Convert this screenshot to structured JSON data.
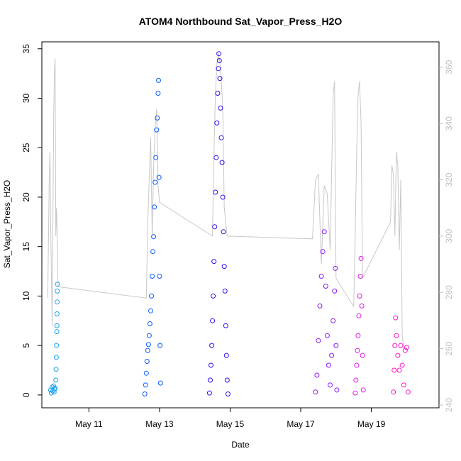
{
  "chart_data": {
    "type": "scatter",
    "title": "ATOM4 Northbound Sat_Vapor_Press_H2O",
    "xlabel": "Date",
    "ylabel": "Sat_Vapor_Press_H2O",
    "xlim": [
      "2018-05-09T16:00",
      "2018-05-20T22:00"
    ],
    "ylim": [
      -1.3,
      35.7
    ],
    "y2lim": [
      239.0,
      369.0
    ],
    "grid": false,
    "x_ticks": [
      {
        "date": "2018-05-11",
        "label": "May 11"
      },
      {
        "date": "2018-05-13",
        "label": "May 13"
      },
      {
        "date": "2018-05-15",
        "label": "May 15"
      },
      {
        "date": "2018-05-17",
        "label": "May 17"
      },
      {
        "date": "2018-05-19",
        "label": "May 19"
      }
    ],
    "y_ticks": [
      0,
      5,
      10,
      15,
      20,
      25,
      30,
      35
    ],
    "y2_ticks": [
      240,
      260,
      280,
      300,
      320,
      340,
      360
    ],
    "colors": {
      "secondary_line": "#c8c8c8",
      "right_axis": "#c0c0c0",
      "axis": "#000000"
    },
    "series": [
      {
        "color": "#19a3f0",
        "points": [
          [
            "2018-05-09T22:00",
            0.5
          ],
          [
            "2018-05-09T22:30",
            0.2
          ],
          [
            "2018-05-09T23:00",
            0.8
          ],
          [
            "2018-05-09T23:30",
            0.4
          ],
          [
            "2018-05-10T00:00",
            0.9
          ],
          [
            "2018-05-10T00:20",
            0.3
          ],
          [
            "2018-05-10T00:40",
            0.6
          ],
          [
            "2018-05-10T01:00",
            0.7
          ],
          [
            "2018-05-10T01:30",
            1.5
          ],
          [
            "2018-05-10T01:40",
            2.6
          ],
          [
            "2018-05-10T01:50",
            3.8
          ],
          [
            "2018-05-10T02:00",
            5.0
          ],
          [
            "2018-05-10T02:10",
            6.4
          ],
          [
            "2018-05-10T02:15",
            7.0
          ],
          [
            "2018-05-10T02:20",
            8.2
          ],
          [
            "2018-05-10T02:25",
            9.4
          ],
          [
            "2018-05-10T02:30",
            10.5
          ],
          [
            "2018-05-10T02:35",
            11.2
          ]
        ]
      },
      {
        "color": "#0a5aff",
        "points": [
          [
            "2018-05-12T14:00",
            0.1
          ],
          [
            "2018-05-12T14:30",
            1.0
          ],
          [
            "2018-05-12T15:00",
            2.2
          ],
          [
            "2018-05-12T15:30",
            3.4
          ],
          [
            "2018-05-12T16:00",
            4.5
          ],
          [
            "2018-05-12T16:30",
            5.1
          ],
          [
            "2018-05-12T17:00",
            6.0
          ],
          [
            "2018-05-12T17:30",
            7.2
          ],
          [
            "2018-05-12T18:00",
            8.5
          ],
          [
            "2018-05-12T18:30",
            10.0
          ],
          [
            "2018-05-12T19:00",
            12.0
          ],
          [
            "2018-05-12T19:30",
            14.5
          ],
          [
            "2018-05-12T20:00",
            16.0
          ],
          [
            "2018-05-12T20:30",
            19.0
          ],
          [
            "2018-05-12T21:00",
            21.5
          ],
          [
            "2018-05-12T21:30",
            24.0
          ],
          [
            "2018-05-12T22:00",
            26.8
          ],
          [
            "2018-05-12T22:30",
            28.0
          ],
          [
            "2018-05-12T23:00",
            30.5
          ],
          [
            "2018-05-12T23:20",
            31.8
          ],
          [
            "2018-05-12T23:40",
            22.0
          ],
          [
            "2018-05-13T00:00",
            12.0
          ],
          [
            "2018-05-13T00:20",
            5.0
          ],
          [
            "2018-05-13T00:40",
            1.2
          ]
        ]
      },
      {
        "color": "#2a10f0",
        "points": [
          [
            "2018-05-14T10:00",
            0.2
          ],
          [
            "2018-05-14T10:30",
            1.5
          ],
          [
            "2018-05-14T11:00",
            3.0
          ],
          [
            "2018-05-14T11:30",
            5.0
          ],
          [
            "2018-05-14T12:00",
            7.5
          ],
          [
            "2018-05-14T12:30",
            10.0
          ],
          [
            "2018-05-14T13:00",
            13.5
          ],
          [
            "2018-05-14T13:30",
            17.0
          ],
          [
            "2018-05-14T14:00",
            20.5
          ],
          [
            "2018-05-14T14:30",
            24.0
          ],
          [
            "2018-05-14T15:00",
            27.5
          ],
          [
            "2018-05-14T15:30",
            30.5
          ],
          [
            "2018-05-14T16:00",
            33.0
          ],
          [
            "2018-05-14T16:20",
            34.5
          ],
          [
            "2018-05-14T16:40",
            33.8
          ],
          [
            "2018-05-14T17:00",
            32.0
          ],
          [
            "2018-05-14T17:30",
            29.0
          ],
          [
            "2018-05-14T18:00",
            26.0
          ],
          [
            "2018-05-14T18:30",
            23.5
          ],
          [
            "2018-05-14T19:00",
            20.0
          ],
          [
            "2018-05-14T19:30",
            16.5
          ],
          [
            "2018-05-14T20:00",
            13.0
          ],
          [
            "2018-05-14T20:30",
            10.5
          ],
          [
            "2018-05-14T21:00",
            7.0
          ],
          [
            "2018-05-14T21:30",
            4.0
          ],
          [
            "2018-05-14T22:00",
            1.5
          ],
          [
            "2018-05-14T22:30",
            0.1
          ]
        ]
      },
      {
        "color": "#8a18f5",
        "points": [
          [
            "2018-05-17T10:00",
            0.3
          ],
          [
            "2018-05-17T11:00",
            2.0
          ],
          [
            "2018-05-17T12:00",
            5.5
          ],
          [
            "2018-05-17T13:00",
            9.0
          ],
          [
            "2018-05-17T14:00",
            12.0
          ],
          [
            "2018-05-17T15:00",
            14.5
          ],
          [
            "2018-05-17T16:00",
            16.5
          ],
          [
            "2018-05-17T17:00",
            11.0
          ],
          [
            "2018-05-17T18:00",
            6.0
          ],
          [
            "2018-05-17T19:00",
            3.0
          ],
          [
            "2018-05-17T20:00",
            1.0
          ],
          [
            "2018-05-17T21:00",
            4.0
          ],
          [
            "2018-05-17T22:00",
            7.5
          ],
          [
            "2018-05-17T23:00",
            10.5
          ],
          [
            "2018-05-17T23:30",
            12.8
          ],
          [
            "2018-05-18T00:00",
            5.0
          ],
          [
            "2018-05-18T00:30",
            0.5
          ]
        ]
      },
      {
        "color": "#e01ae8",
        "points": [
          [
            "2018-05-18T13:00",
            0.2
          ],
          [
            "2018-05-18T13:30",
            1.5
          ],
          [
            "2018-05-18T14:00",
            3.0
          ],
          [
            "2018-05-18T14:30",
            4.5
          ],
          [
            "2018-05-18T15:00",
            6.0
          ],
          [
            "2018-05-18T15:30",
            8.0
          ],
          [
            "2018-05-18T16:00",
            10.0
          ],
          [
            "2018-05-18T16:30",
            12.0
          ],
          [
            "2018-05-18T17:00",
            13.8
          ],
          [
            "2018-05-18T17:30",
            9.0
          ],
          [
            "2018-05-18T18:00",
            4.0
          ],
          [
            "2018-05-18T18:30",
            0.5
          ]
        ]
      },
      {
        "color": "#ff14c8",
        "points": [
          [
            "2018-05-19T15:00",
            0.3
          ],
          [
            "2018-05-19T15:30",
            2.5
          ],
          [
            "2018-05-19T16:00",
            5.0
          ],
          [
            "2018-05-19T16:30",
            7.8
          ],
          [
            "2018-05-19T17:00",
            6.0
          ],
          [
            "2018-05-19T18:00",
            4.0
          ],
          [
            "2018-05-19T19:00",
            2.5
          ],
          [
            "2018-05-19T20:00",
            5.0
          ],
          [
            "2018-05-19T21:00",
            3.0
          ],
          [
            "2018-05-19T22:00",
            1.0
          ],
          [
            "2018-05-19T23:00",
            4.5
          ],
          [
            "2018-05-20T00:00",
            4.8
          ],
          [
            "2018-05-20T01:00",
            0.3
          ]
        ]
      }
    ],
    "secondary_series": {
      "axis": "right",
      "points": [
        [
          "2018-05-09T20:00",
          278
        ],
        [
          "2018-05-09T21:00",
          320
        ],
        [
          "2018-05-09T21:30",
          330
        ],
        [
          "2018-05-09T22:00",
          305
        ],
        [
          "2018-05-09T23:00",
          268
        ],
        [
          "2018-05-10T00:00",
          340
        ],
        [
          "2018-05-10T00:30",
          358
        ],
        [
          "2018-05-10T01:00",
          363
        ],
        [
          "2018-05-10T01:30",
          300
        ],
        [
          "2018-05-10T02:00",
          310
        ],
        [
          "2018-05-10T02:30",
          298
        ],
        [
          "2018-05-10T03:00",
          282
        ],
        [
          "2018-05-12T15:00",
          278
        ],
        [
          "2018-05-12T16:00",
          305
        ],
        [
          "2018-05-12T17:00",
          320
        ],
        [
          "2018-05-12T18:00",
          335
        ],
        [
          "2018-05-12T19:00",
          300
        ],
        [
          "2018-05-12T20:00",
          325
        ],
        [
          "2018-05-12T21:00",
          338
        ],
        [
          "2018-05-12T22:00",
          345
        ],
        [
          "2018-05-12T23:00",
          318
        ],
        [
          "2018-05-13T00:00",
          312
        ],
        [
          "2018-05-14T12:00",
          300
        ],
        [
          "2018-05-14T13:00",
          330
        ],
        [
          "2018-05-14T14:00",
          350
        ],
        [
          "2018-05-14T15:00",
          361
        ],
        [
          "2018-05-14T16:00",
          365
        ],
        [
          "2018-05-14T17:00",
          362
        ],
        [
          "2018-05-14T18:00",
          355
        ],
        [
          "2018-05-14T19:00",
          345
        ],
        [
          "2018-05-14T20:00",
          310
        ],
        [
          "2018-05-14T21:00",
          305
        ],
        [
          "2018-05-14T22:00",
          300
        ],
        [
          "2018-05-17T08:00",
          299
        ],
        [
          "2018-05-17T10:00",
          320
        ],
        [
          "2018-05-17T12:00",
          322
        ],
        [
          "2018-05-17T14:00",
          290
        ],
        [
          "2018-05-17T16:00",
          318
        ],
        [
          "2018-05-17T18:00",
          315
        ],
        [
          "2018-05-17T20:00",
          295
        ],
        [
          "2018-05-17T22:00",
          350
        ],
        [
          "2018-05-17T23:00",
          355
        ],
        [
          "2018-05-18T00:00",
          285
        ],
        [
          "2018-05-18T12:00",
          275
        ],
        [
          "2018-05-18T13:00",
          300
        ],
        [
          "2018-05-18T14:00",
          330
        ],
        [
          "2018-05-18T15:00",
          350
        ],
        [
          "2018-05-18T16:00",
          355
        ],
        [
          "2018-05-18T17:00",
          340
        ],
        [
          "2018-05-18T18:00",
          285
        ],
        [
          "2018-05-19T13:00",
          305
        ],
        [
          "2018-05-19T14:00",
          325
        ],
        [
          "2018-05-19T15:00",
          322
        ],
        [
          "2018-05-19T16:00",
          300
        ],
        [
          "2018-05-19T17:00",
          330
        ],
        [
          "2018-05-19T18:00",
          325
        ],
        [
          "2018-05-19T19:00",
          295
        ],
        [
          "2018-05-19T20:00",
          320
        ],
        [
          "2018-05-19T21:00",
          265
        ],
        [
          "2018-05-19T22:00",
          260
        ]
      ]
    }
  }
}
